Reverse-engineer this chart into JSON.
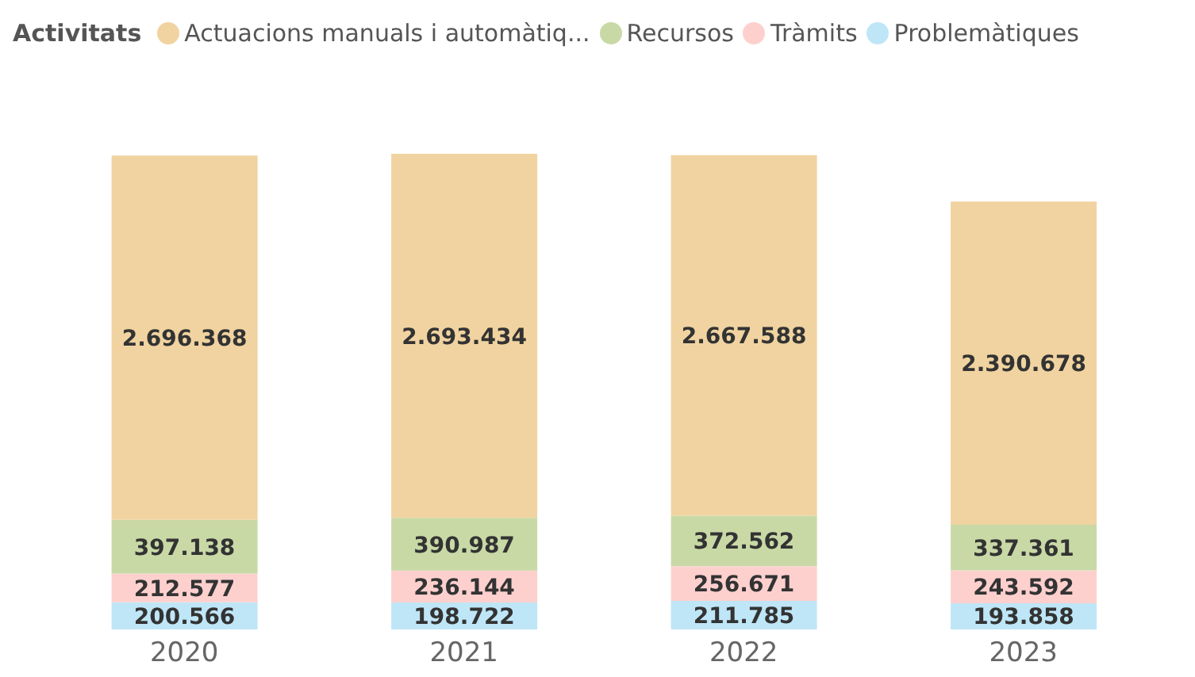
{
  "chart_data": {
    "type": "bar",
    "stacked": true,
    "legend_title": "Activitats",
    "legend": "top left",
    "categories": [
      "2020",
      "2021",
      "2022",
      "2023"
    ],
    "series": [
      {
        "name": "Problemàtiques",
        "color": "#bfe6f7",
        "values": [
          200566,
          198722,
          211785,
          193858
        ],
        "value_labels": [
          "200.566",
          "198.722",
          "211.785",
          "193.858"
        ]
      },
      {
        "name": "Tràmits",
        "color": "#fdd0ce",
        "values": [
          212577,
          236144,
          256671,
          243592
        ],
        "value_labels": [
          "212.577",
          "236.144",
          "256.671",
          "243.592"
        ]
      },
      {
        "name": "Recursos",
        "color": "#c8d9a6",
        "values": [
          397138,
          390987,
          372562,
          337361
        ],
        "value_labels": [
          "397.138",
          "390.987",
          "372.562",
          "337.361"
        ]
      },
      {
        "name": "Actuacions manuals i automàtiq...",
        "color": "#f0d3a0",
        "values": [
          2696368,
          2693434,
          2667588,
          2390678
        ],
        "value_labels": [
          "2.696.368",
          "2.693.434",
          "2.667.588",
          "2.390.678"
        ]
      }
    ]
  }
}
